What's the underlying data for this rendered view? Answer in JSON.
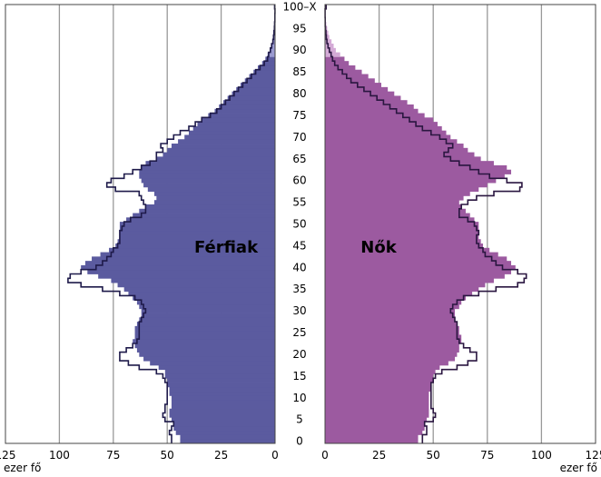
{
  "chart_data": {
    "type": "bar",
    "subtype": "population-pyramid",
    "unit_label": "ezer fő",
    "age_ticks": [
      "0",
      "5",
      "10",
      "15",
      "20",
      "25",
      "30",
      "35",
      "40",
      "45",
      "50",
      "55",
      "60",
      "65",
      "70",
      "75",
      "80",
      "85",
      "90",
      "95",
      "100–X"
    ],
    "x_ticks_left": [
      "125",
      "100",
      "75",
      "50",
      "25",
      "0"
    ],
    "x_ticks_right": [
      "0",
      "25",
      "50",
      "75",
      "100",
      "125"
    ],
    "xlim": [
      0,
      125
    ],
    "grid": true,
    "series": [
      {
        "name": "Férfiak",
        "color": "#5b5b9f",
        "band_color": "#9a9ad0",
        "values": [
          44,
          44,
          46,
          47,
          47,
          48,
          49,
          49,
          48,
          48,
          48,
          49,
          49,
          50,
          50,
          51,
          51,
          54,
          58,
          61,
          63,
          64,
          65,
          66,
          65,
          65,
          65,
          64,
          63,
          62,
          62,
          63,
          64,
          66,
          68,
          70,
          73,
          76,
          82,
          87,
          90,
          88,
          85,
          81,
          77,
          74,
          73,
          72,
          72,
          72,
          72,
          69,
          66,
          63,
          60,
          56,
          55,
          56,
          59,
          61,
          62,
          63,
          63,
          62,
          60,
          55,
          52,
          50,
          48,
          45,
          42,
          40,
          38,
          36,
          34,
          31,
          28,
          26,
          24,
          22,
          20,
          18,
          16,
          14,
          12,
          10,
          8,
          6,
          4.5,
          3.5,
          2.5,
          1.8,
          1.2,
          0.8,
          0.5,
          0.3,
          0.2,
          0.1,
          0.1,
          0.05,
          0.3
        ]
      },
      {
        "name": "Nők",
        "color": "#9c5aa0",
        "band_color": "#d4aad6",
        "values": [
          43,
          43,
          45,
          46,
          46,
          47,
          48,
          48,
          48,
          48,
          48,
          48,
          49,
          49,
          50,
          50,
          51,
          53,
          57,
          60,
          61,
          62,
          62,
          63,
          63,
          62,
          62,
          61,
          60,
          60,
          60,
          62,
          63,
          65,
          68,
          71,
          74,
          78,
          83,
          86,
          88,
          86,
          84,
          80,
          76,
          73,
          72,
          71,
          71,
          71,
          71,
          69,
          67,
          65,
          63,
          62,
          64,
          67,
          71,
          75,
          79,
          83,
          86,
          84,
          78,
          72,
          69,
          66,
          64,
          61,
          58,
          56,
          54,
          52,
          50,
          46,
          43,
          41,
          38,
          35,
          32,
          29,
          26,
          23,
          20,
          17,
          14,
          11,
          9,
          7,
          5,
          4,
          3,
          2,
          1.5,
          1,
          0.6,
          0.4,
          0.2,
          0.1,
          0.6
        ]
      }
    ],
    "outline_series": [
      {
        "name": "Férfiak",
        "values": [
          48,
          48,
          49,
          48,
          47,
          51,
          52,
          51,
          51,
          50,
          50,
          50,
          50,
          50,
          51,
          52,
          55,
          63,
          68,
          72,
          72,
          69,
          66,
          64,
          63,
          63,
          63,
          63,
          62,
          61,
          60,
          61,
          62,
          65,
          72,
          80,
          90,
          96,
          95,
          90,
          83,
          80,
          78,
          76,
          75,
          73,
          72,
          72,
          72,
          71,
          70,
          67,
          62,
          60,
          60,
          61,
          62,
          63,
          74,
          78,
          76,
          70,
          66,
          62,
          58,
          55,
          55,
          52,
          53,
          50,
          47,
          44,
          40,
          37,
          34,
          30,
          27,
          25,
          23,
          21,
          19,
          17,
          15,
          13,
          11,
          9,
          7,
          5,
          3.5,
          3,
          2.2,
          1.6,
          1,
          0.7,
          0.5,
          0.3,
          0.2,
          0.1,
          0.1,
          0.05,
          0.2
        ]
      },
      {
        "name": "Nők",
        "values": [
          45,
          45,
          47,
          47,
          46,
          50,
          51,
          50,
          49,
          49,
          49,
          49,
          49,
          49,
          50,
          51,
          54,
          61,
          66,
          70,
          70,
          67,
          64,
          62,
          61,
          61,
          61,
          61,
          60,
          59,
          58,
          59,
          61,
          64,
          71,
          79,
          89,
          92,
          93,
          89,
          82,
          79,
          77,
          74,
          73,
          71,
          70,
          70,
          71,
          70,
          69,
          66,
          62,
          62,
          63,
          66,
          70,
          78,
          90,
          91,
          84,
          76,
          71,
          67,
          62,
          58,
          55,
          57,
          59,
          56,
          53,
          49,
          45,
          42,
          39,
          36,
          33,
          30,
          27,
          24,
          21,
          18,
          15,
          12,
          10,
          8,
          6,
          4.5,
          3.5,
          2.8,
          2,
          1.4,
          0.9,
          0.6,
          0.4,
          0.2,
          0.1,
          0.1,
          0.05,
          0.05,
          0.5
        ]
      }
    ]
  }
}
